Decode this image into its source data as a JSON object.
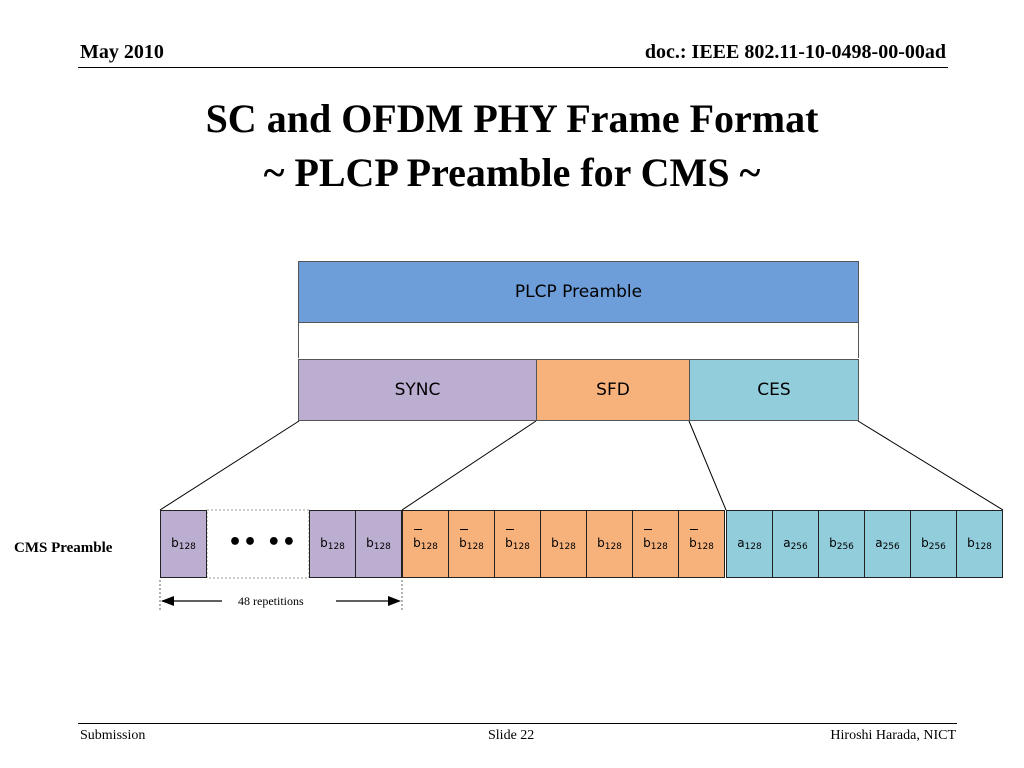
{
  "header": {
    "date": "May 2010",
    "doc": "doc.: IEEE 802.11-10-0498-00-00ad"
  },
  "title": {
    "line1": "SC and OFDM PHY Frame Format",
    "line2": "~ PLCP Preamble for CMS ~"
  },
  "diagram": {
    "preamble_label": "PLCP Preamble",
    "sync_label": "SYNC",
    "sfd_label": "SFD",
    "ces_label": "CES",
    "row_label": "CMS Preamble",
    "repetitions_label": "48 repetitions",
    "ellipsis": "•• ••",
    "colors": {
      "preamble": "#6d9ed9",
      "sync": "#bcaed1",
      "sfd": "#f7b27c",
      "ces": "#92cddc"
    },
    "sync_cells": [
      {
        "base": "b",
        "sub": "128"
      },
      {
        "base": "b",
        "sub": "128"
      },
      {
        "base": "b",
        "sub": "128"
      }
    ],
    "sfd_cells": [
      {
        "base": "b",
        "sub": "128",
        "bar": true
      },
      {
        "base": "b",
        "sub": "128",
        "bar": true
      },
      {
        "base": "b",
        "sub": "128",
        "bar": true
      },
      {
        "base": "b",
        "sub": "128",
        "bar": false
      },
      {
        "base": "b",
        "sub": "128",
        "bar": false
      },
      {
        "base": "b",
        "sub": "128",
        "bar": true
      },
      {
        "base": "b",
        "sub": "128",
        "bar": true
      }
    ],
    "ces_cells": [
      {
        "base": "a",
        "sub": "128"
      },
      {
        "base": "a",
        "sub": "256"
      },
      {
        "base": "b",
        "sub": "256"
      },
      {
        "base": "a",
        "sub": "256"
      },
      {
        "base": "b",
        "sub": "256"
      },
      {
        "base": "b",
        "sub": "128"
      }
    ]
  },
  "footer": {
    "left": "Submission",
    "center": "Slide 22",
    "right": "Hiroshi Harada, NICT"
  }
}
